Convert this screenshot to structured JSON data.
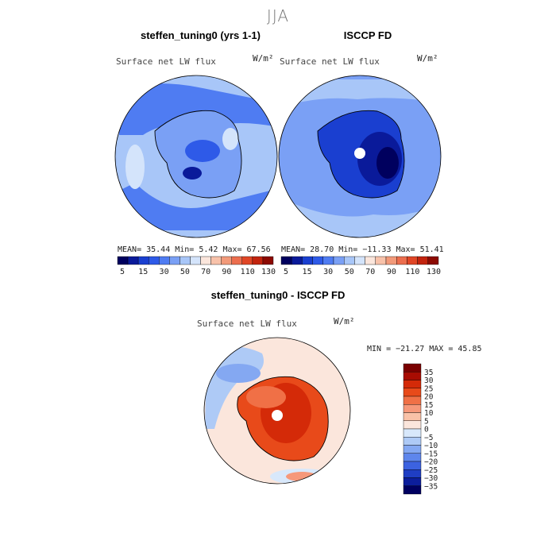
{
  "season_title": "JJA",
  "panels": {
    "model": {
      "title": "steffen_tuning0 (yrs 1-1)",
      "variable": "Surface net LW flux",
      "units": "W/m²",
      "stats": "MEAN=  35.44  Min=    5.42  Max=  67.56"
    },
    "obs": {
      "title": "ISCCP FD",
      "variable": "Surface net LW flux",
      "units": "W/m²",
      "stats": "MEAN=  28.70  Min= −11.33  Max=  51.41"
    },
    "diff": {
      "title": "steffen_tuning0 - ISCCP FD",
      "variable": "Surface net LW flux",
      "units": "W/m²",
      "stats": "MIN = −21.27 MAX =  45.85"
    }
  },
  "field_colorbar": {
    "colors": [
      "#00005e",
      "#0a1a9a",
      "#1a3fd0",
      "#2e5ae8",
      "#4f7cf2",
      "#7aa0f5",
      "#a8c6f8",
      "#d4e4fb",
      "#fbe6dc",
      "#f8c2aa",
      "#f29a7a",
      "#ec6e4e",
      "#e04626",
      "#c2240e",
      "#8c0a02"
    ],
    "tick_labels": [
      "5",
      "15",
      "30",
      "50",
      "70",
      "90",
      "110",
      "130"
    ]
  },
  "diff_colorbar": {
    "colors": [
      "#7a0000",
      "#a80c02",
      "#d42a08",
      "#e84a1a",
      "#f07046",
      "#f6987a",
      "#f9c2a8",
      "#fbe6dc",
      "#d8e8fb",
      "#aecaf6",
      "#84a8f2",
      "#5e86ec",
      "#3c62e0",
      "#1f3ec4",
      "#0c1e9c",
      "#000060"
    ],
    "tick_labels": [
      "35",
      "30",
      "25",
      "20",
      "15",
      "10",
      "5",
      "0",
      "−5",
      "−10",
      "−15",
      "−20",
      "−25",
      "−30",
      "−35"
    ]
  }
}
